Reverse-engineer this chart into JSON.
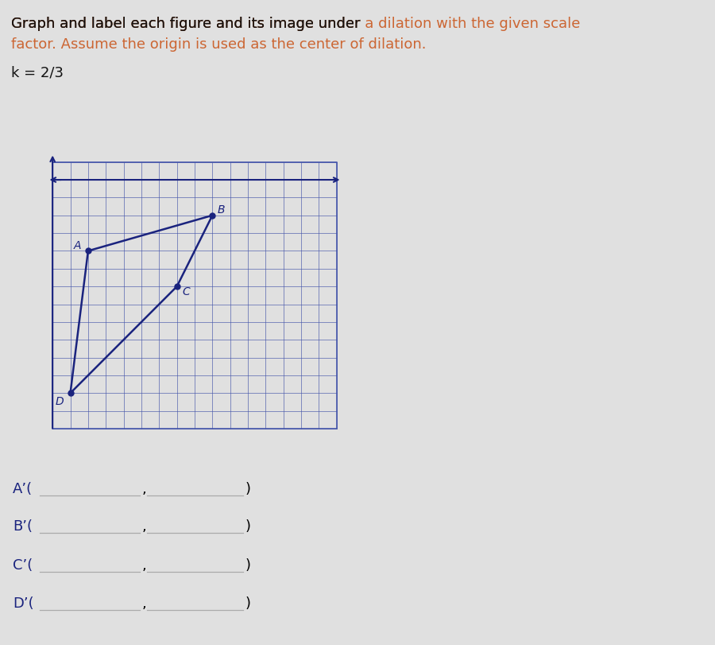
{
  "title_black": "Graph and label each figure and its image under ",
  "title_orange1": "a dilation with the given scale",
  "title_line2_orange": "factor. Assume the origin is used as the center of dilation.",
  "scale_label": "k = 2/3",
  "k_num": 2,
  "k_den": 3,
  "points": {
    "A": [
      2,
      -4
    ],
    "B": [
      9,
      -2
    ],
    "C": [
      7,
      -6
    ],
    "D": [
      1,
      -12
    ]
  },
  "connections": [
    [
      "D",
      "A"
    ],
    [
      "A",
      "B"
    ],
    [
      "B",
      "C"
    ],
    [
      "C",
      "D"
    ]
  ],
  "grid_color": "#4455aa",
  "point_color": "#1a237e",
  "line_color": "#1a237e",
  "bg_color": "#e0e0e0",
  "paper_color": "#ffffff",
  "text_color": "#1a237e",
  "orange_color": "#cc6633",
  "black_color": "#111111",
  "xmin": 0,
  "xmax": 16,
  "ymin": -14,
  "ymax": 1,
  "answer_labels": [
    "A’(",
    "B’(",
    "C’(",
    "D’("
  ]
}
